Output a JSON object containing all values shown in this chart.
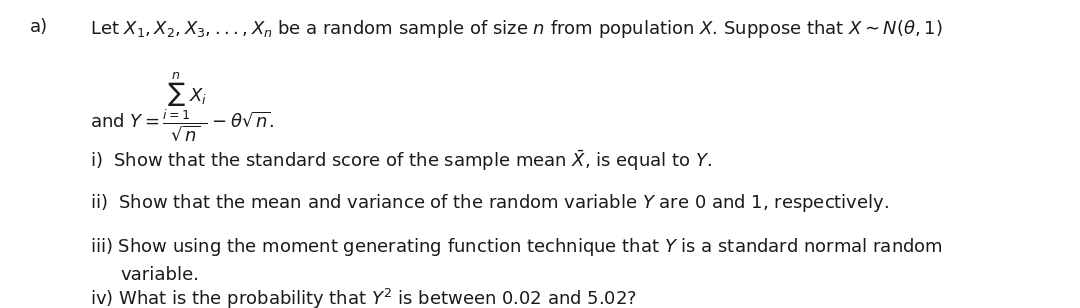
{
  "background_color": "#ffffff",
  "fig_width": 10.8,
  "fig_height": 3.08,
  "dpi": 100,
  "text_color": "#1a1a1a",
  "label_a": "a)",
  "line1": "Let $X_1, X_2, X_3, ..., X_n$ be a random sample of size $n$ from population $X$. Suppose that $X{\\sim}N(\\theta, 1)$",
  "line2": "and $Y = \\dfrac{\\sum_{i=1}^{n} X_i}{\\sqrt{n}} - \\theta\\sqrt{n}.$",
  "line3": "i)  Show that the standard score of the sample mean $\\bar{X}$, is equal to $Y$.",
  "line4": "ii)  Show that the mean and variance of the random variable $Y$ are 0 and 1, respectively.",
  "line5": "iii) Show using the moment generating function technique that $Y$ is a standard normal random",
  "line6": "variable.",
  "line7": "iv) What is the probability that $Y^2$ is between 0.02 and 5.02?",
  "fontsize": 13.0
}
